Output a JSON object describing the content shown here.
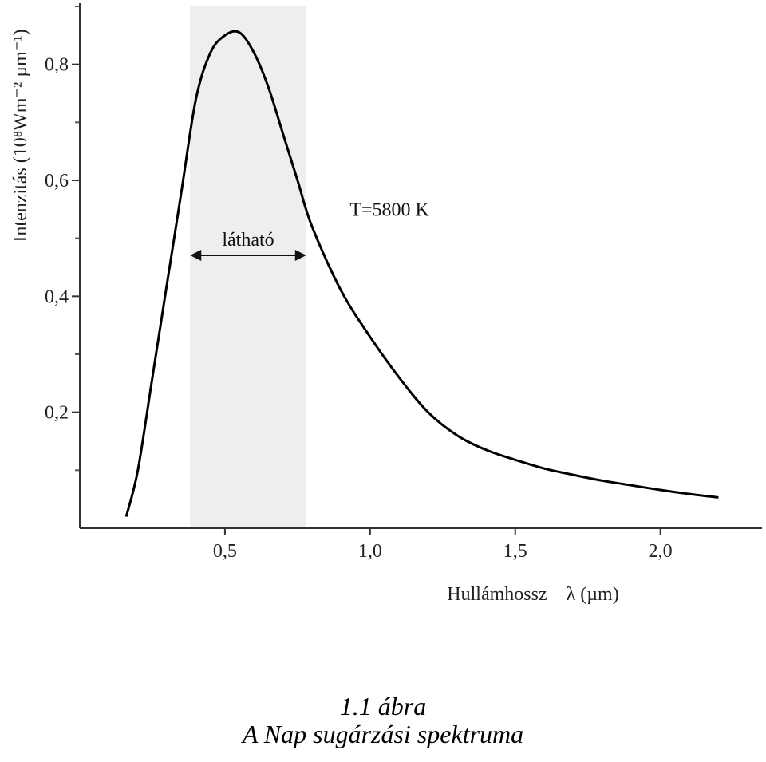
{
  "chart_data": {
    "type": "line",
    "title": "",
    "xlabel": "Hullámhossz    λ (µm)",
    "ylabel": "Intenzitás  (10⁸Wm⁻² µm⁻¹)",
    "xlim": [
      0.0,
      2.35
    ],
    "ylim": [
      0.0,
      0.9
    ],
    "x_ticks": [
      {
        "value": 0.5,
        "label": "0,5"
      },
      {
        "value": 1.0,
        "label": "1,0"
      },
      {
        "value": 1.5,
        "label": "1,5"
      },
      {
        "value": 2.0,
        "label": "2,0"
      }
    ],
    "y_ticks": [
      {
        "value": 0.2,
        "label": "0,2"
      },
      {
        "value": 0.4,
        "label": "0,4"
      },
      {
        "value": 0.6,
        "label": "0,6"
      },
      {
        "value": 0.8,
        "label": "0,8"
      }
    ],
    "y_minor_ticks": [
      0.1,
      0.3,
      0.5,
      0.7,
      0.9
    ],
    "series": [
      {
        "x": [
          0.16,
          0.2,
          0.25,
          0.3,
          0.35,
          0.4,
          0.45,
          0.5,
          0.55,
          0.6,
          0.65,
          0.7,
          0.75,
          0.8,
          0.9,
          1.0,
          1.1,
          1.2,
          1.3,
          1.4,
          1.5,
          1.6,
          1.7,
          1.8,
          1.9,
          2.0,
          2.1,
          2.2
        ],
        "y": [
          0.02,
          0.1,
          0.26,
          0.42,
          0.58,
          0.74,
          0.82,
          0.85,
          0.855,
          0.82,
          0.76,
          0.68,
          0.6,
          0.52,
          0.41,
          0.33,
          0.26,
          0.2,
          0.16,
          0.135,
          0.118,
          0.103,
          0.092,
          0.082,
          0.074,
          0.066,
          0.059,
          0.053
        ],
        "color": "#000000"
      }
    ],
    "shaded_band": {
      "x_from": 0.38,
      "x_to": 0.78,
      "label": "látható",
      "color": "#eeeeee"
    },
    "annotation": {
      "text": "T=5800 K",
      "x": 0.93,
      "y": 0.55
    },
    "grid": false
  },
  "caption": {
    "line1": "1.1 ábra",
    "line2": "A Nap sugárzási spektruma"
  }
}
